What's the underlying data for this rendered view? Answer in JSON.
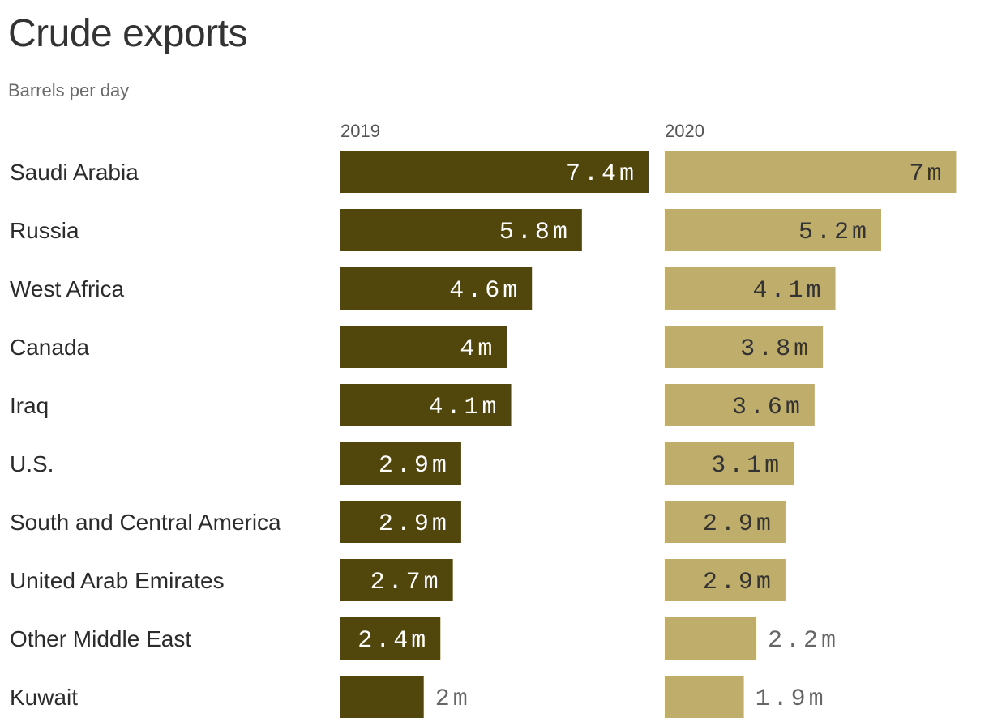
{
  "title": "Crude exports",
  "subtitle": "Barrels per day",
  "colors": {
    "series_2019": "#51460c",
    "series_2020": "#bfad6c",
    "label_on_dark": "#ffffff",
    "label_on_light": "#333333",
    "label_outside": "#666666"
  },
  "chart_data": {
    "type": "bar",
    "orientation": "horizontal",
    "title": "Crude exports",
    "subtitle": "Barrels per day",
    "categories": [
      "Saudi Arabia",
      "Russia",
      "West Africa",
      "Canada",
      "Iraq",
      "U.S.",
      "South and Central America",
      "United Arab Emirates",
      "Other Middle East",
      "Kuwait"
    ],
    "series": [
      {
        "name": "2019",
        "values": [
          7.4,
          5.8,
          4.6,
          4.0,
          4.1,
          2.9,
          2.9,
          2.7,
          2.4,
          2.0
        ],
        "labels": [
          "7.4m",
          "5.8m",
          "4.6m",
          "4m",
          "4.1m",
          "2.9m",
          "2.9m",
          "2.7m",
          "2.4m",
          "2m"
        ]
      },
      {
        "name": "2020",
        "values": [
          7.0,
          5.2,
          4.1,
          3.8,
          3.6,
          3.1,
          2.9,
          2.9,
          2.2,
          1.9
        ],
        "labels": [
          "7m",
          "5.2m",
          "4.1m",
          "3.8m",
          "3.6m",
          "3.1m",
          "2.9m",
          "2.9m",
          "2.2m",
          "1.9m"
        ]
      }
    ],
    "xlim": [
      0,
      7.4
    ],
    "grid": false,
    "legend": "none"
  }
}
